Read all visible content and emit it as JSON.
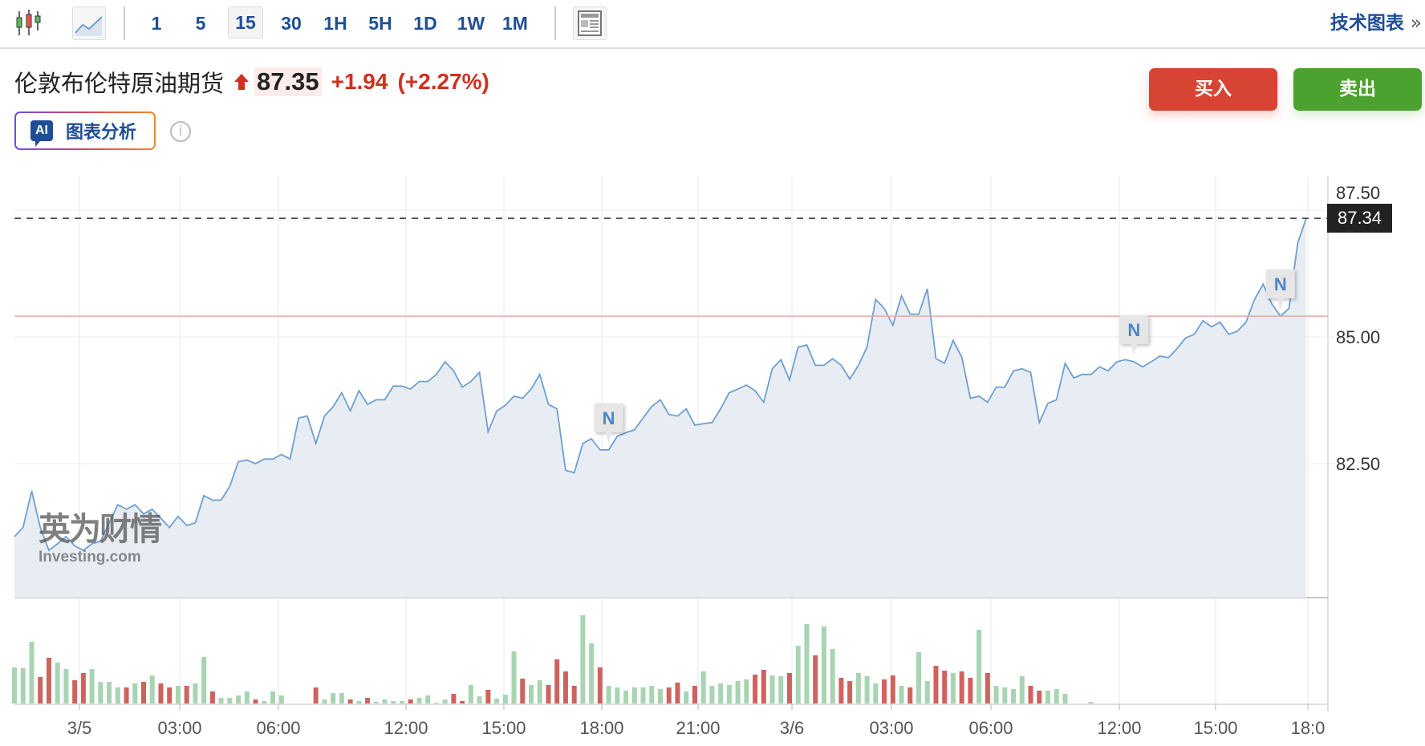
{
  "toolbar": {
    "intervals": [
      "1",
      "5",
      "15",
      "30",
      "1H",
      "5H",
      "1D",
      "1W",
      "1M"
    ],
    "active_interval": "15",
    "tech_chart_label": "技术图表",
    "tech_chart_chevron": "»"
  },
  "instrument": {
    "name": "伦敦布伦特原油期货",
    "price": "87.35",
    "change": "+1.94",
    "change_pct": "(+2.27%)",
    "direction": "up"
  },
  "ai": {
    "badge": "AI",
    "label": "图表分析",
    "info": "i"
  },
  "actions": {
    "buy": "买入",
    "sell": "卖出"
  },
  "watermark": {
    "cn": "英为财情",
    "en": "Investing.com"
  },
  "colors": {
    "up": "#a8d4b2",
    "down": "#d0625e",
    "line": "#6f9fd0",
    "area": "#e8edf4",
    "buy": "#d84433",
    "sell": "#4ca22e",
    "accent": "#1f4e96"
  },
  "chart_data": {
    "type": "area",
    "interval": "15",
    "y_ticks": [
      "82.50",
      "85.00",
      "87.50"
    ],
    "x_ticks": [
      "3/5",
      "03:00",
      "06:00",
      "12:00",
      "15:00",
      "18:00",
      "21:00",
      "3/6",
      "03:00",
      "06:00",
      "12:00",
      "15:00",
      "18:0"
    ],
    "last_price_label": "87.34",
    "last_price": 87.34,
    "previous_close": 85.41,
    "ylim": [
      79.86,
      88.16
    ],
    "grid": true,
    "annotations": [
      {
        "label": "N",
        "index": 69
      },
      {
        "label": "N",
        "index": 130
      },
      {
        "label": "N",
        "index": 147
      }
    ],
    "price": [
      81.06,
      81.24,
      81.96,
      81.24,
      80.79,
      80.92,
      81.06,
      80.88,
      80.79,
      80.92,
      80.97,
      81.33,
      81.69,
      81.6,
      81.69,
      81.51,
      81.6,
      81.42,
      81.24,
      81.46,
      81.28,
      81.33,
      81.87,
      81.78,
      81.78,
      82.05,
      82.54,
      82.57,
      82.5,
      82.59,
      82.59,
      82.68,
      82.59,
      83.4,
      83.44,
      82.9,
      83.44,
      83.62,
      83.9,
      83.54,
      83.94,
      83.67,
      83.76,
      83.76,
      84.03,
      84.03,
      83.97,
      84.12,
      84.12,
      84.26,
      84.51,
      84.33,
      84.01,
      84.12,
      84.3,
      83.13,
      83.54,
      83.65,
      83.83,
      83.79,
      83.97,
      84.26,
      83.67,
      83.58,
      82.37,
      82.32,
      82.9,
      82.99,
      82.77,
      82.77,
      83.04,
      83.11,
      83.17,
      83.4,
      83.63,
      83.76,
      83.47,
      83.44,
      83.58,
      83.26,
      83.29,
      83.31,
      83.58,
      83.9,
      83.97,
      84.05,
      83.94,
      83.71,
      84.37,
      84.55,
      84.15,
      84.8,
      84.84,
      84.44,
      84.44,
      84.57,
      84.44,
      84.17,
      84.44,
      84.8,
      85.74,
      85.56,
      85.23,
      85.81,
      85.45,
      85.45,
      85.95,
      84.57,
      84.48,
      84.93,
      84.6,
      83.79,
      83.83,
      83.71,
      84.01,
      84.01,
      84.33,
      84.37,
      84.3,
      83.31,
      83.69,
      83.76,
      84.48,
      84.19,
      84.26,
      84.26,
      84.41,
      84.33,
      84.51,
      84.55,
      84.51,
      84.41,
      84.51,
      84.62,
      84.59,
      84.77,
      84.98,
      85.05,
      85.32,
      85.2,
      85.29,
      85.05,
      85.11,
      85.29,
      85.74,
      86.04,
      85.65,
      85.41,
      85.56,
      86.85,
      87.34
    ],
    "volume": [
      45,
      44,
      77,
      33,
      57,
      51,
      43,
      29,
      38,
      43,
      27,
      27,
      20,
      20,
      25,
      27,
      35,
      25,
      20,
      22,
      22,
      25,
      58,
      15,
      7,
      7,
      10,
      15,
      5,
      3,
      15,
      10,
      0,
      0,
      0,
      20,
      5,
      13,
      13,
      5,
      3,
      7,
      2,
      5,
      3,
      3,
      5,
      7,
      10,
      1,
      5,
      12,
      3,
      23,
      9,
      17,
      6,
      11,
      65,
      31,
      23,
      29,
      23,
      55,
      40,
      22,
      110,
      75,
      45,
      22,
      20,
      16,
      20,
      20,
      22,
      18,
      20,
      26,
      15,
      22,
      40,
      22,
      25,
      23,
      28,
      30,
      36,
      42,
      35,
      34,
      38,
      72,
      99,
      60,
      96,
      68,
      32,
      28,
      38,
      34,
      25,
      30,
      35,
      22,
      20,
      64,
      28,
      47,
      41,
      38,
      40,
      32,
      92,
      38,
      22,
      20,
      18,
      34,
      22,
      16,
      16,
      18,
      12,
      0,
      0,
      2,
      0,
      0,
      0,
      0,
      0,
      0,
      0,
      0,
      0,
      0,
      0,
      0,
      0,
      0,
      0,
      0,
      0,
      0,
      0,
      0,
      0,
      0,
      0,
      0,
      0,
      0,
      0
    ]
  }
}
